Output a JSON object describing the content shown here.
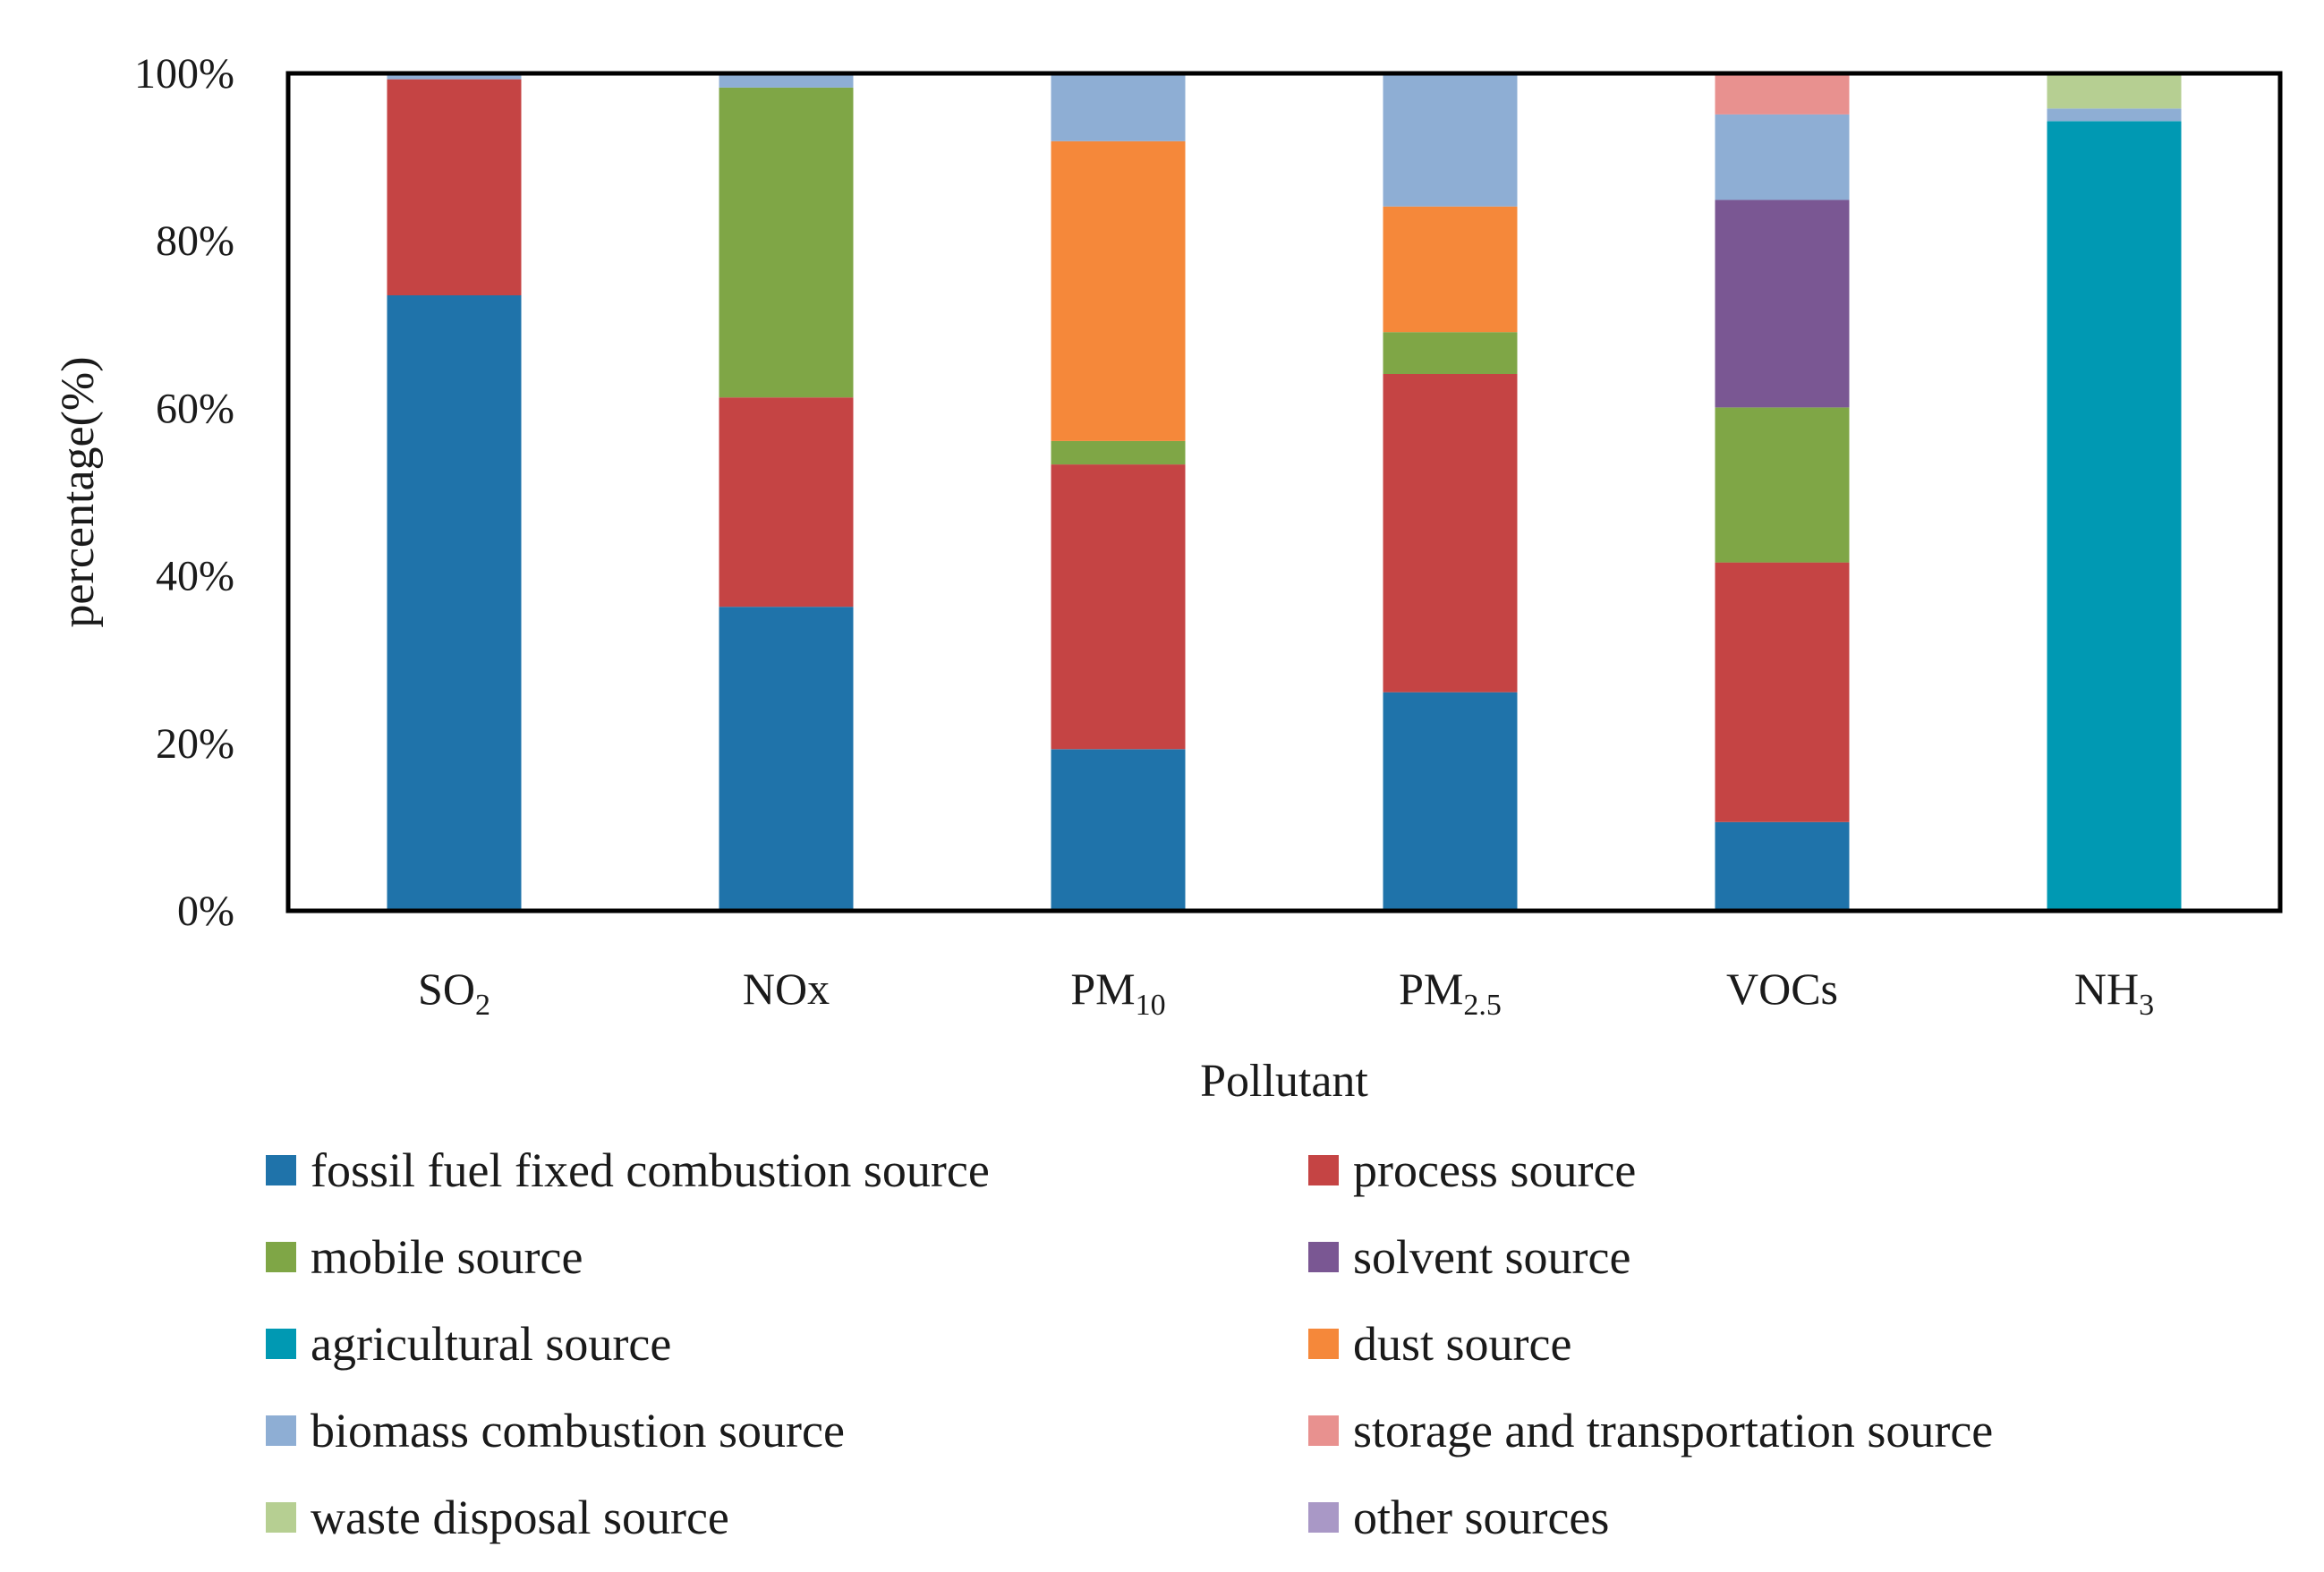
{
  "chart_data": {
    "type": "bar",
    "stacked": true,
    "percent": true,
    "title": "",
    "xlabel": "Pollutant",
    "ylabel": "percentage(%)",
    "ylim": [
      0,
      100
    ],
    "yticks": [
      "0%",
      "20%",
      "40%",
      "60%",
      "80%",
      "100%"
    ],
    "grid": false,
    "legend_position": "bottom",
    "categories": [
      {
        "base": "SO",
        "sub": "2"
      },
      {
        "base": "NOx",
        "sub": ""
      },
      {
        "base": "PM",
        "sub": "10"
      },
      {
        "base": "PM",
        "sub": "2.5"
      },
      {
        "base": "VOCs",
        "sub": ""
      },
      {
        "base": "NH",
        "sub": "3"
      }
    ],
    "series": [
      {
        "name": "fossil fuel fixed combustion source",
        "color": "#1f73aa",
        "values": [
          73.5,
          36.3,
          19.3,
          26.1,
          10.6,
          0
        ]
      },
      {
        "name": "process source",
        "color": "#c54444",
        "values": [
          25.8,
          25.0,
          34.0,
          38.0,
          31.0,
          0
        ]
      },
      {
        "name": "mobile source",
        "color": "#7fa646",
        "values": [
          0,
          37.0,
          2.8,
          5.0,
          18.5,
          0
        ]
      },
      {
        "name": "solvent source",
        "color": "#7a5793",
        "values": [
          0,
          0,
          0,
          0,
          24.8,
          0
        ]
      },
      {
        "name": "agricultural source",
        "color": "#0099b3",
        "values": [
          0,
          0,
          0,
          0,
          0,
          94.3
        ]
      },
      {
        "name": "dust source",
        "color": "#f5883a",
        "values": [
          0,
          0,
          35.8,
          15.0,
          0,
          0
        ]
      },
      {
        "name": "biomass combustion source",
        "color": "#8eaed4",
        "values": [
          0.7,
          1.7,
          8.1,
          15.9,
          10.2,
          1.5
        ]
      },
      {
        "name": "storage and transportation source",
        "color": "#e8918f",
        "values": [
          0,
          0,
          0,
          0,
          4.9,
          0
        ]
      },
      {
        "name": "waste disposal source",
        "color": "#b6cf92",
        "values": [
          0,
          0,
          0,
          0,
          0,
          4.2
        ]
      },
      {
        "name": "other sources",
        "color": "#a998c6",
        "values": [
          0,
          0,
          0,
          0,
          0,
          0
        ]
      }
    ]
  }
}
